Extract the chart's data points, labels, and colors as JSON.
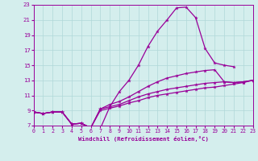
{
  "xlabel": "Windchill (Refroidissement éolien,°C)",
  "background_color": "#d4eeed",
  "line_color": "#990099",
  "xlim": [
    0,
    23
  ],
  "ylim": [
    7,
    23
  ],
  "xticks": [
    0,
    1,
    2,
    3,
    4,
    5,
    6,
    7,
    8,
    9,
    10,
    11,
    12,
    13,
    14,
    15,
    16,
    17,
    18,
    19,
    20,
    21,
    22,
    23
  ],
  "yticks": [
    7,
    9,
    11,
    13,
    15,
    17,
    19,
    21,
    23
  ],
  "grid_color": "#b0d8d8",
  "line1_x": [
    0,
    1,
    2,
    3,
    4,
    5,
    6,
    7,
    8,
    9,
    10,
    11,
    12,
    13,
    14,
    15,
    16,
    17,
    18,
    19,
    20,
    21,
    22,
    23
  ],
  "line1_y": [
    8.8,
    8.6,
    8.8,
    8.8,
    7.2,
    7.3,
    6.7,
    6.6,
    9.5,
    11.5,
    13.0,
    15.0,
    17.5,
    19.5,
    21.0,
    22.6,
    22.7,
    21.3,
    17.2,
    15.3,
    15.0,
    14.8,
    null,
    null
  ],
  "line2_x": [
    0,
    1,
    2,
    3,
    4,
    5,
    6,
    7,
    8,
    9,
    10,
    11,
    12,
    13,
    14,
    15,
    16,
    17,
    18,
    19,
    20,
    21,
    22,
    23
  ],
  "line2_y": [
    8.8,
    8.6,
    8.8,
    8.8,
    7.2,
    7.3,
    6.7,
    9.2,
    9.8,
    10.2,
    10.8,
    11.5,
    12.2,
    12.8,
    13.3,
    13.6,
    13.9,
    14.1,
    14.3,
    14.4,
    12.8,
    12.7,
    12.8,
    13.0
  ],
  "line3_x": [
    0,
    1,
    2,
    3,
    4,
    5,
    6,
    7,
    8,
    9,
    10,
    11,
    12,
    13,
    14,
    15,
    16,
    17,
    18,
    19,
    20,
    21,
    22,
    23
  ],
  "line3_y": [
    8.8,
    8.6,
    8.8,
    8.8,
    7.2,
    7.3,
    6.7,
    9.2,
    9.5,
    9.8,
    10.3,
    10.8,
    11.2,
    11.5,
    11.8,
    12.0,
    12.2,
    12.4,
    12.6,
    12.7,
    12.8,
    12.7,
    12.8,
    13.0
  ],
  "line4_x": [
    0,
    1,
    2,
    3,
    4,
    5,
    6,
    7,
    8,
    9,
    10,
    11,
    12,
    13,
    14,
    15,
    16,
    17,
    18,
    19,
    20,
    21,
    22,
    23
  ],
  "line4_y": [
    8.8,
    8.6,
    8.8,
    8.8,
    7.2,
    7.3,
    6.7,
    9.0,
    9.3,
    9.6,
    10.0,
    10.3,
    10.7,
    11.0,
    11.2,
    11.4,
    11.6,
    11.8,
    12.0,
    12.1,
    12.3,
    12.5,
    12.7,
    13.0
  ],
  "marker": "*",
  "markersize": 3.5,
  "linewidth": 0.9
}
